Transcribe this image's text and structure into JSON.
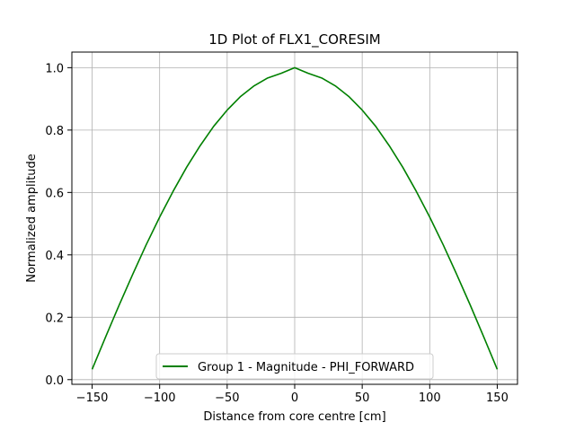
{
  "chart_data": {
    "type": "line",
    "title": "1D Plot of FLX1_CORESIM",
    "xlabel": "Distance from core centre [cm]",
    "ylabel": "Normalized amplitude",
    "xlim": [
      -165,
      165
    ],
    "ylim": [
      -0.015,
      1.05
    ],
    "xticks": [
      -150,
      -100,
      -50,
      0,
      50,
      100,
      150
    ],
    "yticks": [
      0.0,
      0.2,
      0.4,
      0.6,
      0.8,
      1.0
    ],
    "xtick_labels": [
      "−150",
      "−100",
      "−50",
      "0",
      "50",
      "100",
      "150"
    ],
    "ytick_labels": [
      "0.0",
      "0.2",
      "0.4",
      "0.6",
      "0.8",
      "1.0"
    ],
    "grid": true,
    "legend_placement": "lower-center",
    "series": [
      {
        "name": "Group 1 - Magnitude - PHI_FORWARD",
        "color": "#008000",
        "x": [
          -150,
          -140,
          -130,
          -120,
          -110,
          -100,
          -90,
          -80,
          -70,
          -60,
          -50,
          -40,
          -30,
          -20,
          -10,
          0,
          10,
          20,
          30,
          40,
          50,
          60,
          70,
          80,
          90,
          100,
          110,
          120,
          130,
          140,
          150
        ],
        "y": [
          0.033,
          0.137,
          0.239,
          0.337,
          0.432,
          0.521,
          0.604,
          0.681,
          0.75,
          0.812,
          0.864,
          0.908,
          0.942,
          0.967,
          0.982,
          1.0,
          0.982,
          0.967,
          0.942,
          0.908,
          0.864,
          0.812,
          0.75,
          0.681,
          0.604,
          0.521,
          0.432,
          0.337,
          0.239,
          0.137,
          0.033
        ]
      }
    ]
  }
}
